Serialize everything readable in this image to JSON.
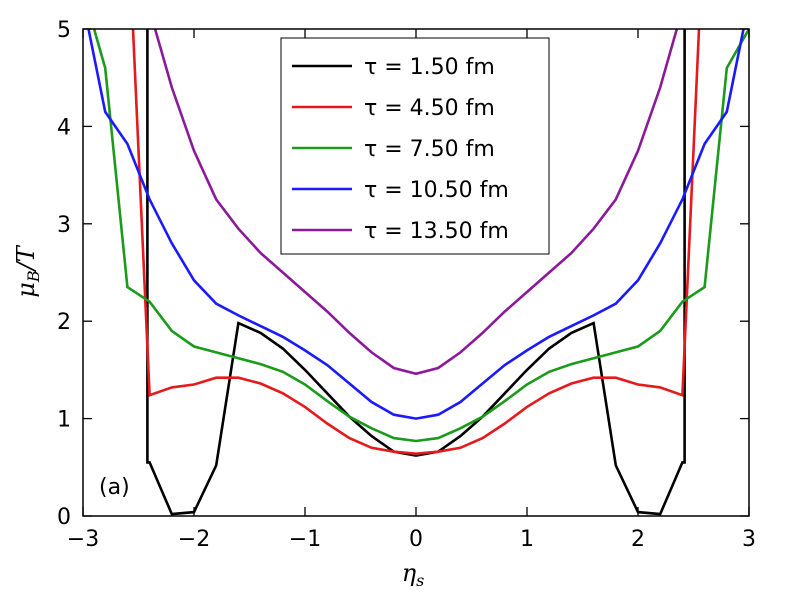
{
  "chart_data": {
    "type": "line",
    "xlabel": "η_s",
    "ylabel": "μ_B/T",
    "xlim": [
      -3,
      3
    ],
    "ylim": [
      0,
      5
    ],
    "xticks": [
      -3,
      -2,
      -1,
      0,
      1,
      2,
      3
    ],
    "xtick_labels": [
      "−3",
      "−2",
      "−1",
      "0",
      "1",
      "2",
      "3"
    ],
    "yticks": [
      0,
      1,
      2,
      3,
      4,
      5
    ],
    "ytick_labels": [
      "0",
      "1",
      "2",
      "3",
      "4",
      "5"
    ],
    "grid": false,
    "legend_position": "top-center",
    "annotation": "(a)",
    "series": [
      {
        "name": "τ = 1.50 fm",
        "color": "#000000",
        "x": [
          -2.42,
          -2.42,
          -2.4,
          -2.2,
          -2.0,
          -1.8,
          -1.6,
          -1.4,
          -1.2,
          -1.0,
          -0.8,
          -0.6,
          -0.4,
          -0.2,
          0.0,
          0.2,
          0.4,
          0.6,
          0.8,
          1.0,
          1.2,
          1.4,
          1.6,
          1.8,
          2.0,
          2.2,
          2.4,
          2.42,
          2.42
        ],
        "y": [
          5.0,
          0.55,
          0.55,
          0.02,
          0.04,
          0.52,
          1.98,
          1.88,
          1.72,
          1.5,
          1.26,
          1.02,
          0.82,
          0.66,
          0.62,
          0.66,
          0.82,
          1.02,
          1.26,
          1.5,
          1.72,
          1.88,
          1.98,
          0.52,
          0.04,
          0.02,
          0.55,
          0.55,
          5.0
        ]
      },
      {
        "name": "τ = 4.50 fm",
        "color": "#e41a1c",
        "x": [
          -2.55,
          -2.4,
          -2.2,
          -2.0,
          -1.8,
          -1.6,
          -1.4,
          -1.2,
          -1.0,
          -0.8,
          -0.6,
          -0.4,
          -0.2,
          0.0,
          0.2,
          0.4,
          0.6,
          0.8,
          1.0,
          1.2,
          1.4,
          1.6,
          1.8,
          2.0,
          2.2,
          2.4,
          2.55
        ],
        "y": [
          5.0,
          1.24,
          1.32,
          1.35,
          1.42,
          1.42,
          1.36,
          1.26,
          1.12,
          0.95,
          0.8,
          0.7,
          0.66,
          0.64,
          0.66,
          0.7,
          0.8,
          0.95,
          1.12,
          1.26,
          1.36,
          1.42,
          1.42,
          1.35,
          1.32,
          1.24,
          5.0
        ]
      },
      {
        "name": "τ = 7.50 fm",
        "color": "#1b9a1b",
        "x": [
          -2.9,
          -2.8,
          -2.6,
          -2.4,
          -2.2,
          -2.0,
          -1.8,
          -1.6,
          -1.4,
          -1.2,
          -1.0,
          -0.8,
          -0.6,
          -0.4,
          -0.2,
          0.0,
          0.2,
          0.4,
          0.6,
          0.8,
          1.0,
          1.2,
          1.4,
          1.6,
          1.8,
          2.0,
          2.2,
          2.4,
          2.6,
          2.8,
          3.0
        ],
        "y": [
          5.0,
          4.6,
          2.35,
          2.2,
          1.9,
          1.74,
          1.68,
          1.62,
          1.56,
          1.48,
          1.35,
          1.18,
          1.02,
          0.9,
          0.8,
          0.77,
          0.8,
          0.9,
          1.02,
          1.18,
          1.35,
          1.48,
          1.56,
          1.62,
          1.68,
          1.74,
          1.9,
          2.2,
          2.35,
          4.6,
          5.0
        ]
      },
      {
        "name": "τ = 10.50 fm",
        "color": "#1a1aff",
        "x": [
          -2.95,
          -2.8,
          -2.6,
          -2.4,
          -2.2,
          -2.0,
          -1.8,
          -1.6,
          -1.4,
          -1.2,
          -1.0,
          -0.8,
          -0.6,
          -0.4,
          -0.2,
          0.0,
          0.2,
          0.4,
          0.6,
          0.8,
          1.0,
          1.2,
          1.4,
          1.6,
          1.8,
          2.0,
          2.2,
          2.4,
          2.6,
          2.8,
          2.95
        ],
        "y": [
          5.0,
          4.15,
          3.82,
          3.25,
          2.8,
          2.42,
          2.18,
          2.06,
          1.95,
          1.84,
          1.7,
          1.55,
          1.36,
          1.17,
          1.04,
          1.0,
          1.04,
          1.17,
          1.36,
          1.55,
          1.7,
          1.84,
          1.95,
          2.06,
          2.18,
          2.42,
          2.8,
          3.25,
          3.82,
          4.15,
          5.0
        ]
      },
      {
        "name": "τ = 13.50 fm",
        "color": "#8b1a9b",
        "x": [
          -2.35,
          -2.2,
          -2.0,
          -1.8,
          -1.6,
          -1.4,
          -1.2,
          -1.0,
          -0.8,
          -0.6,
          -0.4,
          -0.2,
          0.0,
          0.2,
          0.4,
          0.6,
          0.8,
          1.0,
          1.2,
          1.4,
          1.6,
          1.8,
          2.0,
          2.2,
          2.35
        ],
        "y": [
          5.0,
          4.4,
          3.75,
          3.25,
          2.95,
          2.7,
          2.5,
          2.3,
          2.1,
          1.88,
          1.68,
          1.52,
          1.46,
          1.52,
          1.68,
          1.88,
          2.1,
          2.3,
          2.5,
          2.7,
          2.95,
          3.25,
          3.75,
          4.4,
          5.0
        ]
      }
    ]
  }
}
